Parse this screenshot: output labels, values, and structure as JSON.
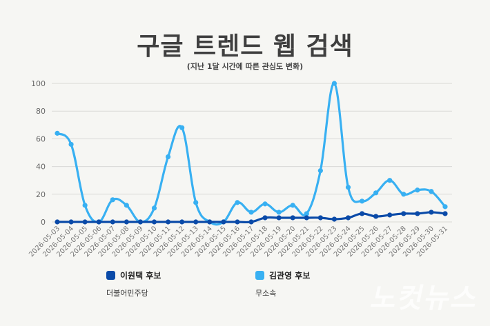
{
  "title": "구글 트렌드 웹 검색",
  "subtitle": "(지난 1달 시간에 따른 관심도 변화)",
  "watermark": "노컷뉴스",
  "chart_data": {
    "type": "line",
    "title": "구글 트렌드 웹 검색",
    "subtitle": "(지난 1달 시간에 따른 관심도 변화)",
    "xlabel": "",
    "ylabel": "",
    "ylim": [
      0,
      100
    ],
    "yticks": [
      0,
      20,
      40,
      60,
      80,
      100
    ],
    "grid": true,
    "legend_position": "bottom",
    "categories": [
      "2026-05-03",
      "2026-05-04",
      "2026-05-05",
      "2026-05-06",
      "2026-05-07",
      "2026-05-08",
      "2026-05-09",
      "2026-05-10",
      "2026-05-11",
      "2026-05-12",
      "2026-05-13",
      "2026-05-14",
      "2026-05-15",
      "2026-05-16",
      "2026-05-17",
      "2026-05-18",
      "2026-05-19",
      "2026-05-20",
      "2026-05-21",
      "2026-05-22",
      "2026-05-23",
      "2026-05-24",
      "2026-05-25",
      "2026-05-26",
      "2026-05-27",
      "2026-05-28",
      "2026-05-29",
      "2026-05-30",
      "2026-05-31"
    ],
    "series": [
      {
        "name": "김관영 후보",
        "party": "무소속",
        "color": "#38b0f2",
        "values": [
          64,
          56,
          12,
          0,
          16,
          12,
          0,
          10,
          47,
          68,
          14,
          0,
          0,
          14,
          7,
          13,
          7,
          12,
          6,
          37,
          100,
          25,
          15,
          21,
          30,
          20,
          23,
          22,
          11
        ]
      },
      {
        "name": "이원택 후보",
        "party": "더불어민주당",
        "color": "#0a4aa8",
        "values": [
          0,
          0,
          0,
          0,
          0,
          0,
          0,
          0,
          0,
          0,
          0,
          0,
          0,
          0,
          0,
          3,
          3,
          3,
          3,
          3,
          2,
          3,
          6,
          4,
          5,
          6,
          6,
          7,
          6
        ]
      }
    ]
  }
}
